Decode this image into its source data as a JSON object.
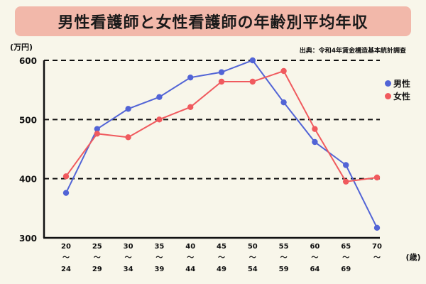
{
  "title": "男性看護師と女性看護師の年齢別平均年収",
  "unit_label": "(万円)",
  "source": "出典：令和4年賃金構造基本統計調査",
  "x_unit_label": "(歳)",
  "colors": {
    "male": "#5264d6",
    "female": "#f05a5e",
    "title_bg": "#f2b8aa",
    "background": "#f8f6ea"
  },
  "legend": [
    {
      "label": "男性",
      "color": "#5264d6"
    },
    {
      "label": "女性",
      "color": "#f05a5e"
    }
  ],
  "chart_data": {
    "type": "line",
    "title": "男性看護師と女性看護師の年齢別平均年収",
    "xlabel": "(歳)",
    "ylabel": "(万円)",
    "ylim": [
      300,
      600
    ],
    "yticks": [
      300,
      400,
      500,
      600
    ],
    "grid": "dashed horizontal at 400, 500, 600",
    "legend_position": "right",
    "categories": [
      {
        "top": "20",
        "bottom": "24"
      },
      {
        "top": "25",
        "bottom": "29"
      },
      {
        "top": "30",
        "bottom": "34"
      },
      {
        "top": "35",
        "bottom": "39"
      },
      {
        "top": "40",
        "bottom": "44"
      },
      {
        "top": "45",
        "bottom": "49"
      },
      {
        "top": "50",
        "bottom": "54"
      },
      {
        "top": "55",
        "bottom": "59"
      },
      {
        "top": "60",
        "bottom": "64"
      },
      {
        "top": "65",
        "bottom": "69"
      },
      {
        "top": "70",
        "bottom": ""
      }
    ],
    "series": [
      {
        "name": "男性",
        "color": "#5264d6",
        "values": [
          376,
          484,
          518,
          538,
          571,
          580,
          600,
          529,
          462,
          423,
          317
        ]
      },
      {
        "name": "女性",
        "color": "#f05a5e",
        "values": [
          404,
          476,
          470,
          500,
          521,
          564,
          564,
          582,
          484,
          395,
          402
        ]
      }
    ]
  }
}
